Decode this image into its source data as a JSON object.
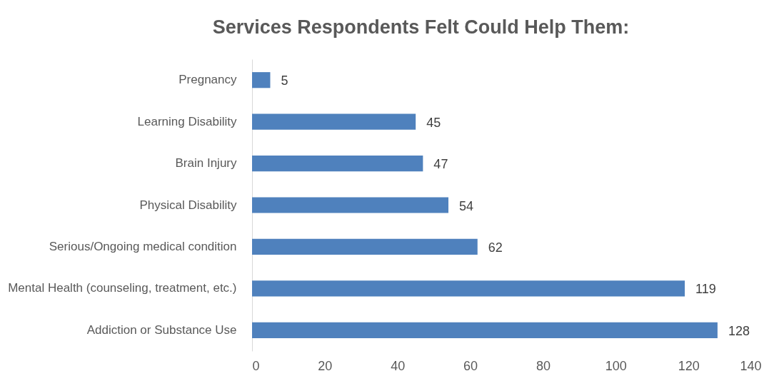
{
  "chart_data": {
    "type": "bar",
    "orientation": "horizontal",
    "title": "Services Respondents Felt Could Help Them:",
    "categories": [
      "Pregnancy",
      "Learning Disability",
      "Brain Injury",
      "Physical Disability",
      "Serious/Ongoing medical condition",
      "Mental Health (counseling, treatment, etc.)",
      "Addiction or Substance Use"
    ],
    "values": [
      5,
      45,
      47,
      54,
      62,
      119,
      128
    ],
    "color": "#4f81bd",
    "data_labels": true,
    "xlim": [
      0,
      140
    ],
    "xticks": [
      0,
      20,
      40,
      60,
      80,
      100,
      120,
      140
    ],
    "grid": false
  }
}
